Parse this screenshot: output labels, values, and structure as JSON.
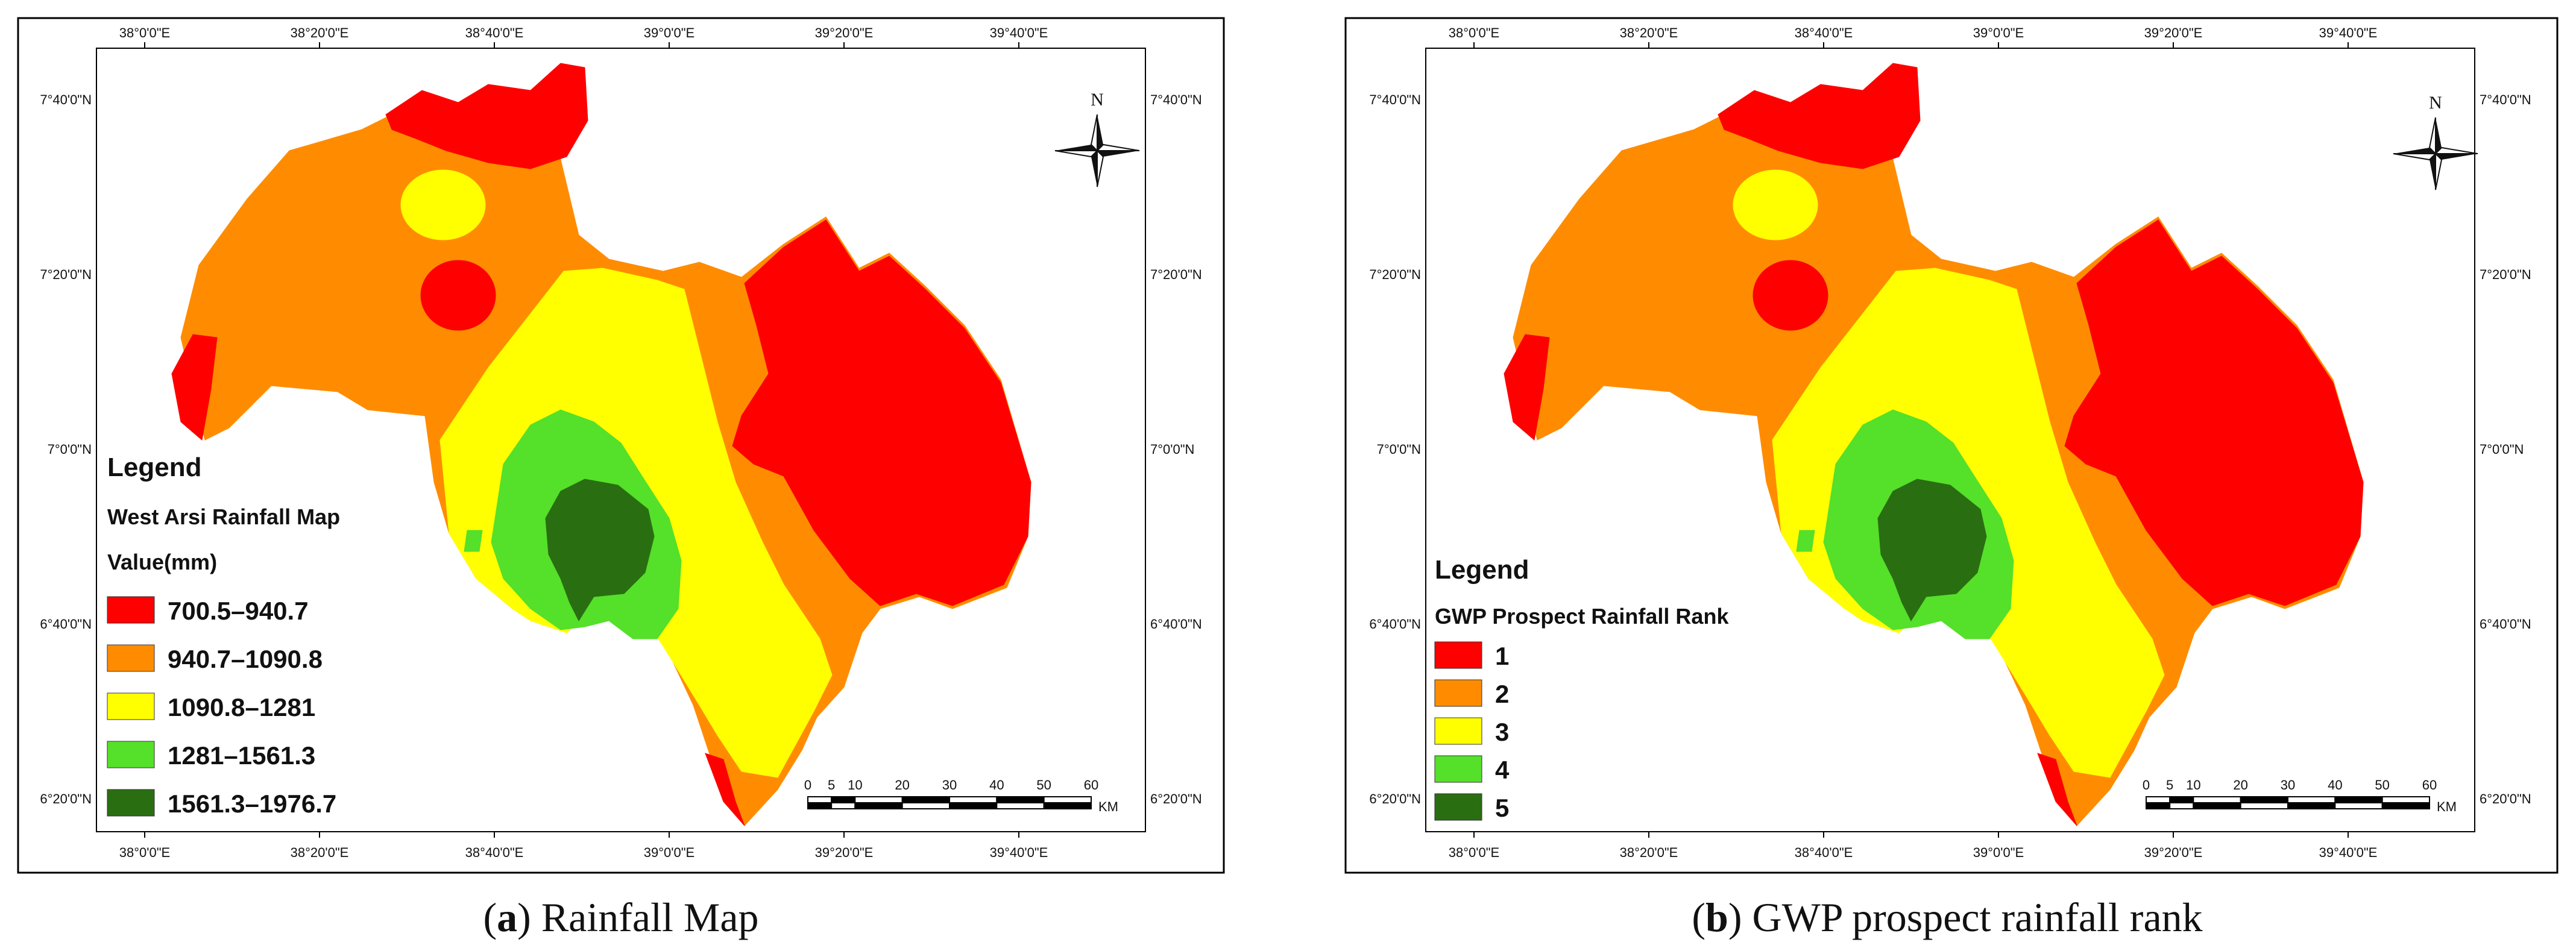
{
  "colors": {
    "c1": "#ff0000",
    "c2": "#ff8c00",
    "c3": "#ffff00",
    "c4": "#55e02a",
    "c5": "#2a6e12",
    "frame": "#000000"
  },
  "axes": {
    "lon_labels": [
      "38°0'0\"E",
      "38°20'0\"E",
      "38°40'0\"E",
      "39°0'0\"E",
      "39°20'0\"E",
      "39°40'0\"E"
    ],
    "lat_labels": [
      "7°40'0\"N",
      "7°20'0\"N",
      "7°0'0\"N",
      "6°40'0\"N",
      "6°20'0\"N"
    ]
  },
  "north_label": "N",
  "scale_bar": {
    "labels": [
      "0",
      "5",
      "10",
      "20",
      "30",
      "40",
      "50",
      "60"
    ],
    "unit": "KM"
  },
  "map_a": {
    "caption_letter": "a",
    "caption_text": " Rainfall Map",
    "legend_title": "Legend",
    "legend_subtitle": "West Arsi Rainfall Map",
    "legend_field": "Value(mm)",
    "classes": [
      {
        "label": "700.5–940.7",
        "color": "#ff0000"
      },
      {
        "label": "940.7–1090.8",
        "color": "#ff8c00"
      },
      {
        "label": "1090.8–1281",
        "color": "#ffff00"
      },
      {
        "label": "1281–1561.3",
        "color": "#55e02a"
      },
      {
        "label": "1561.3–1976.7",
        "color": "#2a6e12"
      }
    ]
  },
  "map_b": {
    "caption_letter": "b",
    "caption_text": " GWP prospect rainfall rank",
    "legend_title": "Legend",
    "legend_subtitle": "GWP Prospect Rainfall Rank",
    "classes": [
      {
        "label": "1",
        "color": "#ff0000"
      },
      {
        "label": "2",
        "color": "#ff8c00"
      },
      {
        "label": "3",
        "color": "#ffff00"
      },
      {
        "label": "4",
        "color": "#55e02a"
      },
      {
        "label": "5",
        "color": "#2a6e12"
      }
    ]
  }
}
